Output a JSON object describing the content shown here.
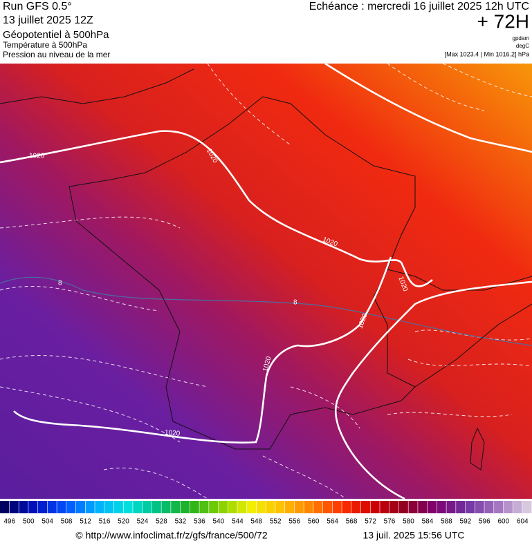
{
  "header": {
    "run": "Run GFS 0.5°",
    "date": "13 juillet 2025 12Z",
    "layer1": "Géopotentiel à 500hPa",
    "layer2": "Température à 500hPa",
    "layer3": "Pression au niveau de la mer",
    "echeance": "Echéance : mercredi 16 juillet 2025 12h UTC",
    "lead": "+ 72H",
    "unit1": "gpdam",
    "unit2": "degC",
    "pressure_range": "[Max 1023.4 | Min 1016.2] hPa"
  },
  "map": {
    "isobar_labels": [
      "1020",
      "1020",
      "1020",
      "1020",
      "1020",
      "1020",
      "1020"
    ],
    "isotherm_labels": [
      "8",
      "8"
    ]
  },
  "colorbar": {
    "labels": [
      496,
      500,
      504,
      508,
      512,
      516,
      520,
      524,
      528,
      532,
      536,
      540,
      544,
      548,
      552,
      556,
      560,
      564,
      568,
      572,
      576,
      580,
      584,
      588,
      592,
      596,
      600,
      604
    ]
  },
  "footer": {
    "url": "© http://www.infoclimat.fr/z/gfs/france/500/72",
    "timestamp": "13 juil. 2025 15:56 UTC"
  }
}
